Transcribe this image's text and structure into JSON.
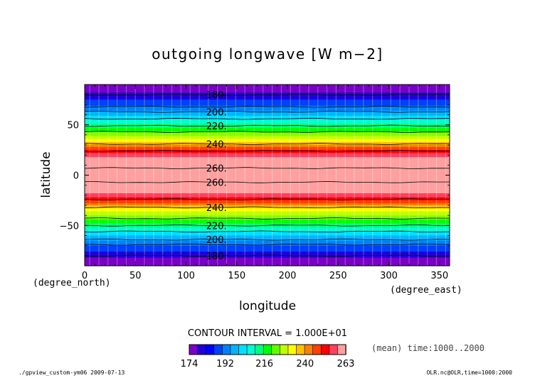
{
  "chart_data": {
    "type": "contour",
    "title": "outgoing longwave [W m−2]",
    "xlabel": "longitude",
    "ylabel": "latitude",
    "x_unit": "(degree_east)",
    "y_unit": "(degree_north)",
    "xlim": [
      0,
      360
    ],
    "ylim": [
      -90,
      90
    ],
    "x_ticks": [
      0,
      50,
      100,
      150,
      200,
      250,
      300,
      350
    ],
    "y_ticks": [
      -50,
      0,
      50
    ],
    "contour_interval_text": "CONTOUR INTERVAL = 1.000E+01",
    "info_text": "(mean) time:1000..2000",
    "footer_left": "./gpview_custom-ym06  2009-07-13",
    "footer_right": "OLR.nc@OLR,time=1000:2000",
    "colorbar_tick_labels": [
      "174",
      "192",
      "216",
      "240",
      "263"
    ],
    "colorbar_colors": [
      "#7a00c8",
      "#1e00d8",
      "#0000ff",
      "#0040ff",
      "#0080ff",
      "#00b4ff",
      "#00e0ff",
      "#00ffd0",
      "#00ff80",
      "#00ff00",
      "#60ff00",
      "#c0ff00",
      "#ffff00",
      "#ffc000",
      "#ff8000",
      "#ff4000",
      "#ff0000",
      "#ff4060",
      "#ffa0a0"
    ],
    "latitude_band_colors": [
      {
        "lat": [
          82,
          90
        ],
        "color": "#7a00c8"
      },
      {
        "lat": [
          75,
          82
        ],
        "color": "#1e00d8"
      },
      {
        "lat": [
          69,
          75
        ],
        "color": "#0040ff"
      },
      {
        "lat": [
          64,
          69
        ],
        "color": "#0080ff"
      },
      {
        "lat": [
          59,
          64
        ],
        "color": "#00b4ff"
      },
      {
        "lat": [
          55,
          59
        ],
        "color": "#00e0ff"
      },
      {
        "lat": [
          51,
          55
        ],
        "color": "#00ffd0"
      },
      {
        "lat": [
          47,
          51
        ],
        "color": "#00ff80"
      },
      {
        "lat": [
          43,
          47
        ],
        "color": "#00ff00"
      },
      {
        "lat": [
          39,
          43
        ],
        "color": "#80ff00"
      },
      {
        "lat": [
          36,
          39
        ],
        "color": "#c0ff00"
      },
      {
        "lat": [
          33,
          36
        ],
        "color": "#ffff00"
      },
      {
        "lat": [
          30,
          33
        ],
        "color": "#ffc000"
      },
      {
        "lat": [
          28,
          30
        ],
        "color": "#ff8000"
      },
      {
        "lat": [
          25,
          28
        ],
        "color": "#ff4000"
      },
      {
        "lat": [
          22,
          25
        ],
        "color": "#ff0000"
      },
      {
        "lat": [
          18,
          22
        ],
        "color": "#ff4060"
      },
      {
        "lat": [
          -18,
          18
        ],
        "color": "#ffa0a0"
      },
      {
        "lat": [
          -22,
          -18
        ],
        "color": "#ff4060"
      },
      {
        "lat": [
          -25,
          -22
        ],
        "color": "#ff0000"
      },
      {
        "lat": [
          -28,
          -25
        ],
        "color": "#ff4000"
      },
      {
        "lat": [
          -30,
          -28
        ],
        "color": "#ff8000"
      },
      {
        "lat": [
          -33,
          -30
        ],
        "color": "#ffc000"
      },
      {
        "lat": [
          -36,
          -33
        ],
        "color": "#ffff00"
      },
      {
        "lat": [
          -40,
          -36
        ],
        "color": "#c0ff00"
      },
      {
        "lat": [
          -44,
          -40
        ],
        "color": "#80ff00"
      },
      {
        "lat": [
          -48,
          -44
        ],
        "color": "#00ff00"
      },
      {
        "lat": [
          -52,
          -48
        ],
        "color": "#00ff80"
      },
      {
        "lat": [
          -56,
          -52
        ],
        "color": "#00ffd0"
      },
      {
        "lat": [
          -60,
          -56
        ],
        "color": "#00e0ff"
      },
      {
        "lat": [
          -65,
          -60
        ],
        "color": "#00b4ff"
      },
      {
        "lat": [
          -70,
          -65
        ],
        "color": "#0080ff"
      },
      {
        "lat": [
          -76,
          -70
        ],
        "color": "#0040ff"
      },
      {
        "lat": [
          -82,
          -76
        ],
        "color": "#1e00d8"
      },
      {
        "lat": [
          -90,
          -82
        ],
        "color": "#7a00c8"
      }
    ],
    "contour_lines": [
      {
        "lat": 80,
        "label": "180."
      },
      {
        "lat": 68,
        "label": ""
      },
      {
        "lat": 63,
        "label": "200."
      },
      {
        "lat": 56,
        "label": ""
      },
      {
        "lat": 49,
        "label": "220."
      },
      {
        "lat": 43,
        "label": ""
      },
      {
        "lat": 31,
        "label": "240."
      },
      {
        "lat": 24,
        "label": ""
      },
      {
        "lat": 7,
        "label": "260."
      },
      {
        "lat": -7,
        "label": "260."
      },
      {
        "lat": -24,
        "label": ""
      },
      {
        "lat": -32,
        "label": "240."
      },
      {
        "lat": -43,
        "label": ""
      },
      {
        "lat": -50,
        "label": "220."
      },
      {
        "lat": -56,
        "label": ""
      },
      {
        "lat": -64,
        "label": "200."
      },
      {
        "lat": -69,
        "label": ""
      },
      {
        "lat": -80,
        "label": "180."
      }
    ],
    "grid": false,
    "legend": "colorbar-bottom"
  }
}
